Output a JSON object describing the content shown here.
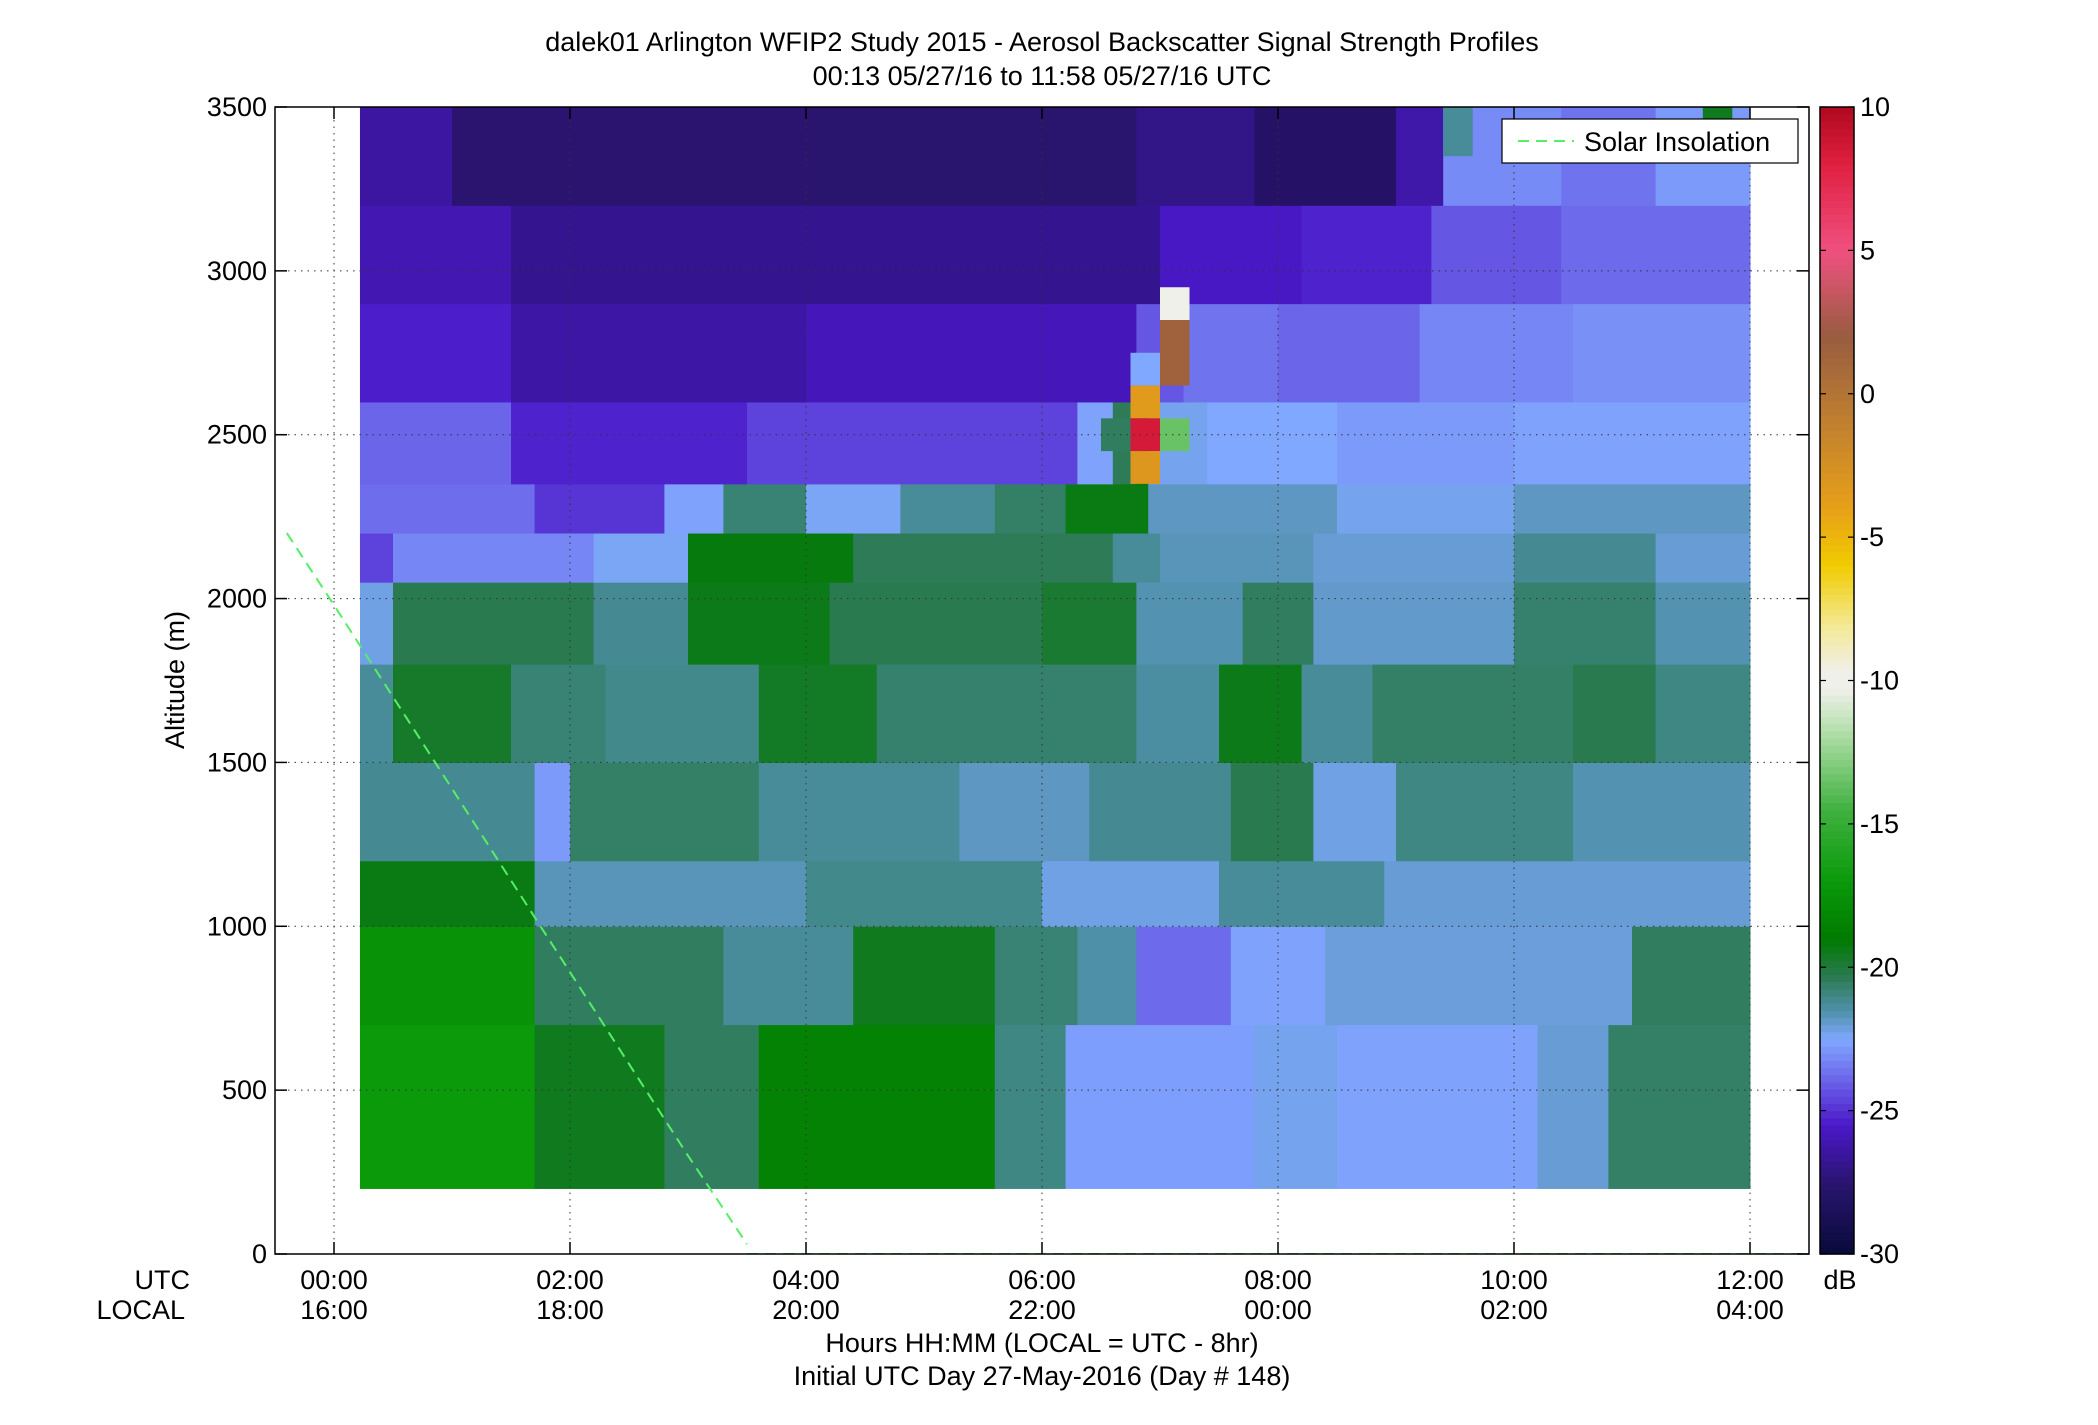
{
  "chart_data": {
    "type": "heatmap",
    "title": "dalek01 Arlington WFIP2 Study 2015 - Aerosol Backscatter Signal Strength Profiles",
    "subtitle": "00:13 05/27/16 to 11:58 05/27/16  UTC",
    "ylabel": "Altitude (m)",
    "xlabel": "Hours HH:MM  (LOCAL = UTC - 8hr)",
    "xlabel2": "Initial UTC Day 27-May-2016 (Day # 148)",
    "row_label_utc": "UTC",
    "row_label_local": "LOCAL",
    "xlim": [
      -0.5,
      12.5
    ],
    "ylim": [
      0,
      3500
    ],
    "grid": true,
    "legend": {
      "position": "top-right",
      "entries": [
        {
          "label": "Solar Insolation",
          "style": "dashed",
          "color": "#55ee66"
        }
      ]
    },
    "x_ticks": [
      {
        "value": 0,
        "utc": "00:00",
        "local": "16:00"
      },
      {
        "value": 2,
        "utc": "02:00",
        "local": "18:00"
      },
      {
        "value": 4,
        "utc": "04:00",
        "local": "20:00"
      },
      {
        "value": 6,
        "utc": "06:00",
        "local": "22:00"
      },
      {
        "value": 8,
        "utc": "08:00",
        "local": "00:00"
      },
      {
        "value": 10,
        "utc": "10:00",
        "local": "02:00"
      },
      {
        "value": 12,
        "utc": "12:00",
        "local": "04:00"
      }
    ],
    "y_ticks": [
      {
        "value": 0,
        "label": "0"
      },
      {
        "value": 500,
        "label": "500"
      },
      {
        "value": 1000,
        "label": "1000"
      },
      {
        "value": 1500,
        "label": "1500"
      },
      {
        "value": 2000,
        "label": "2000"
      },
      {
        "value": 2500,
        "label": "2500"
      },
      {
        "value": 3000,
        "label": "3000"
      },
      {
        "value": 3500,
        "label": "3500"
      }
    ],
    "colorbar": {
      "label": "dB",
      "range": [
        -30,
        10
      ],
      "ticks": [
        {
          "value": 10,
          "label": "10"
        },
        {
          "value": 5,
          "label": "5"
        },
        {
          "value": 0,
          "label": "0"
        },
        {
          "value": -5,
          "label": "-5"
        },
        {
          "value": -10,
          "label": "-10"
        },
        {
          "value": -15,
          "label": "-15"
        },
        {
          "value": -20,
          "label": "-20"
        },
        {
          "value": -25,
          "label": "-25"
        },
        {
          "value": -30,
          "label": "-30"
        }
      ],
      "stops": [
        {
          "value": -30,
          "color": "#080a3a"
        },
        {
          "value": -27.5,
          "color": "#2a1470"
        },
        {
          "value": -25.5,
          "color": "#4a18c8"
        },
        {
          "value": -24,
          "color": "#6a60e8"
        },
        {
          "value": -22.5,
          "color": "#80a8ff"
        },
        {
          "value": -21.5,
          "color": "#4e90a8"
        },
        {
          "value": -20.3,
          "color": "#2a7a50"
        },
        {
          "value": -19,
          "color": "#007a00"
        },
        {
          "value": -17,
          "color": "#0a9a0a"
        },
        {
          "value": -14.5,
          "color": "#40b040"
        },
        {
          "value": -12,
          "color": "#a8dca0"
        },
        {
          "value": -10.3,
          "color": "#f0f0ea"
        },
        {
          "value": -9.7,
          "color": "#f0f0ea"
        },
        {
          "value": -8,
          "color": "#f4e890"
        },
        {
          "value": -6,
          "color": "#f0cc00"
        },
        {
          "value": -4,
          "color": "#e8a018"
        },
        {
          "value": -1,
          "color": "#c08030"
        },
        {
          "value": 2,
          "color": "#985c40"
        },
        {
          "value": 5,
          "color": "#f05080"
        },
        {
          "value": 8,
          "color": "#e02040"
        },
        {
          "value": 10,
          "color": "#b00820"
        }
      ]
    },
    "series": [
      {
        "x": [
          3.5,
          12.5
        ],
        "y": [
          0,
          0
        ]
      },
      {
        "x": [
          -0.4,
          0.0,
          1.0,
          2.0,
          3.0,
          3.5
        ],
        "y": [
          2200,
          1980,
          1420,
          860,
          300,
          30
        ]
      }
    ],
    "heatmap": {
      "x_start": 0.22,
      "x_end": 12.0,
      "y_start": 200,
      "y_end": 3500,
      "bands": [
        {
          "y": [
            200,
            700
          ],
          "segments": [
            [
              0.22,
              1.7,
              -17
            ],
            [
              1.7,
              2.8,
              -19.5
            ],
            [
              2.8,
              3.6,
              -20.5
            ],
            [
              3.6,
              5.6,
              -18.5
            ],
            [
              5.6,
              6.2,
              -21
            ],
            [
              6.2,
              7.8,
              -22.7
            ],
            [
              7.8,
              8.5,
              -22.3
            ],
            [
              8.5,
              10.2,
              -22.6
            ],
            [
              10.2,
              10.8,
              -22
            ],
            [
              10.8,
              12.0,
              -20.6
            ]
          ]
        },
        {
          "y": [
            700,
            1000
          ],
          "segments": [
            [
              0.22,
              1.7,
              -17.5
            ],
            [
              1.7,
              3.3,
              -20.5
            ],
            [
              3.3,
              4.4,
              -21.3
            ],
            [
              4.4,
              5.6,
              -19.5
            ],
            [
              5.6,
              6.3,
              -20.8
            ],
            [
              6.3,
              6.8,
              -21.5
            ],
            [
              6.8,
              7.6,
              -23.8
            ],
            [
              7.6,
              8.4,
              -22.6
            ],
            [
              8.4,
              11.0,
              -22.1
            ],
            [
              11.0,
              12.0,
              -20.5
            ]
          ]
        },
        {
          "y": [
            1000,
            1200
          ],
          "segments": [
            [
              0.22,
              1.7,
              -19.3
            ],
            [
              1.7,
              4.0,
              -21.7
            ],
            [
              4.0,
              6.0,
              -21.1
            ],
            [
              6.0,
              7.5,
              -22.2
            ],
            [
              7.5,
              8.9,
              -21.3
            ],
            [
              8.9,
              12.0,
              -22
            ]
          ]
        },
        {
          "y": [
            1200,
            1500
          ],
          "segments": [
            [
              0.22,
              1.7,
              -21.2
            ],
            [
              1.7,
              2.0,
              -22.8
            ],
            [
              2.0,
              3.6,
              -20.6
            ],
            [
              3.6,
              5.3,
              -21.3
            ],
            [
              5.3,
              6.4,
              -21.8
            ],
            [
              6.4,
              7.6,
              -21.2
            ],
            [
              7.6,
              8.3,
              -20.3
            ],
            [
              8.3,
              9.0,
              -22.2
            ],
            [
              9.0,
              10.5,
              -21
            ],
            [
              10.5,
              12.0,
              -21.6
            ]
          ]
        },
        {
          "y": [
            1500,
            1800
          ],
          "segments": [
            [
              0.22,
              0.5,
              -21.3
            ],
            [
              0.5,
              1.5,
              -19.7
            ],
            [
              1.5,
              2.3,
              -20.8
            ],
            [
              2.3,
              3.6,
              -21.1
            ],
            [
              3.6,
              4.6,
              -19.6
            ],
            [
              4.6,
              6.8,
              -20.7
            ],
            [
              6.8,
              7.5,
              -21.4
            ],
            [
              7.5,
              8.2,
              -19.4
            ],
            [
              8.2,
              8.8,
              -21.3
            ],
            [
              8.8,
              9.6,
              -20.6
            ],
            [
              9.6,
              10.5,
              -20.6
            ],
            [
              10.5,
              11.2,
              -20.3
            ],
            [
              11.2,
              12.0,
              -21
            ]
          ]
        },
        {
          "y": [
            1800,
            2050
          ],
          "segments": [
            [
              0.22,
              0.5,
              -22.2
            ],
            [
              0.5,
              2.2,
              -20.3
            ],
            [
              2.2,
              3.0,
              -21.2
            ],
            [
              3.0,
              4.2,
              -19.4
            ],
            [
              4.2,
              6.0,
              -20.3
            ],
            [
              6.0,
              6.8,
              -19.8
            ],
            [
              6.8,
              7.7,
              -21.6
            ],
            [
              7.7,
              8.3,
              -20.5
            ],
            [
              8.3,
              10.0,
              -21.9
            ],
            [
              10.0,
              11.2,
              -20.7
            ],
            [
              11.2,
              12.0,
              -21.6
            ]
          ]
        },
        {
          "y": [
            2050,
            2200
          ],
          "segments": [
            [
              0.22,
              0.5,
              -24.6
            ],
            [
              0.5,
              2.2,
              -23.2
            ],
            [
              2.2,
              3.0,
              -22.4
            ],
            [
              3.0,
              4.4,
              -19.2
            ],
            [
              4.4,
              6.6,
              -20.4
            ],
            [
              6.6,
              7.0,
              -21.3
            ],
            [
              7.0,
              8.3,
              -21.7
            ],
            [
              8.3,
              10.0,
              -22
            ],
            [
              10.0,
              11.2,
              -21.2
            ],
            [
              11.2,
              12.0,
              -22
            ]
          ]
        },
        {
          "y": [
            2200,
            2350
          ],
          "segments": [
            [
              0.22,
              1.7,
              -23.7
            ],
            [
              1.7,
              2.8,
              -24.9
            ],
            [
              2.8,
              3.3,
              -22.6
            ],
            [
              3.3,
              4.0,
              -20.8
            ],
            [
              4.0,
              4.8,
              -22.4
            ],
            [
              4.8,
              5.6,
              -21.3
            ],
            [
              5.6,
              6.2,
              -20.6
            ],
            [
              6.2,
              6.9,
              -19.3
            ],
            [
              6.9,
              8.5,
              -21.8
            ],
            [
              8.5,
              10.0,
              -22.3
            ],
            [
              10.0,
              12.0,
              -21.8
            ]
          ]
        },
        {
          "y": [
            2350,
            2600
          ],
          "segments": [
            [
              0.22,
              1.5,
              -23.9
            ],
            [
              1.5,
              3.5,
              -25.3
            ],
            [
              3.5,
              6.3,
              -24.6
            ],
            [
              6.3,
              6.6,
              -22.6
            ],
            [
              6.6,
              6.8,
              -20.4
            ],
            [
              6.8,
              6.9,
              -19.1
            ],
            [
              6.9,
              7.4,
              -22.3
            ],
            [
              7.4,
              8.5,
              -22.5
            ],
            [
              8.5,
              10.0,
              -22.8
            ],
            [
              10.0,
              12.0,
              -22.6
            ]
          ]
        },
        {
          "y": [
            2600,
            2900
          ],
          "segments": [
            [
              0.22,
              1.5,
              -25.4
            ],
            [
              1.5,
              4.0,
              -26.3
            ],
            [
              4.0,
              6.8,
              -25.8
            ],
            [
              6.8,
              7.2,
              -24.2
            ],
            [
              7.2,
              8.0,
              -23.6
            ],
            [
              8.0,
              9.2,
              -23.9
            ],
            [
              9.2,
              10.5,
              -23.2
            ],
            [
              10.5,
              12.0,
              -23
            ]
          ]
        },
        {
          "y": [
            2900,
            3200
          ],
          "segments": [
            [
              0.22,
              1.5,
              -26
            ],
            [
              1.5,
              4.0,
              -26.8
            ],
            [
              4.0,
              7.0,
              -26.8
            ],
            [
              7.0,
              8.2,
              -25.6
            ],
            [
              8.2,
              9.3,
              -25.3
            ],
            [
              9.3,
              10.4,
              -24.2
            ],
            [
              10.4,
              12.0,
              -23.8
            ]
          ]
        },
        {
          "y": [
            3200,
            3500
          ],
          "segments": [
            [
              0.22,
              1.0,
              -26.4
            ],
            [
              1.0,
              4.0,
              -27.5
            ],
            [
              4.0,
              6.8,
              -27.6
            ],
            [
              6.8,
              7.8,
              -27
            ],
            [
              7.8,
              9.0,
              -27.9
            ],
            [
              9.0,
              9.4,
              -26.2
            ],
            [
              9.4,
              10.4,
              -23.1
            ],
            [
              10.4,
              11.2,
              -23.6
            ],
            [
              11.2,
              12.0,
              -22.8
            ]
          ]
        }
      ],
      "cells": [
        {
          "x": [
            7.0,
            7.25
          ],
          "y": [
            2850,
            2950
          ],
          "value": -10
        },
        {
          "x": [
            7.0,
            7.25
          ],
          "y": [
            2650,
            2850
          ],
          "value": 1.5
        },
        {
          "x": [
            6.75,
            7.0
          ],
          "y": [
            2650,
            2750
          ],
          "value": -22.5
        },
        {
          "x": [
            6.75,
            7.0
          ],
          "y": [
            2550,
            2650
          ],
          "value": -3.5
        },
        {
          "x": [
            6.75,
            7.0
          ],
          "y": [
            2450,
            2550
          ],
          "value": 8.5
        },
        {
          "x": [
            6.75,
            7.0
          ],
          "y": [
            2350,
            2450
          ],
          "value": -3.2
        },
        {
          "x": [
            7.0,
            7.25
          ],
          "y": [
            2450,
            2550
          ],
          "value": -13.5
        },
        {
          "x": [
            6.5,
            6.75
          ],
          "y": [
            2450,
            2550
          ],
          "value": -20.5
        },
        {
          "x": [
            9.4,
            9.65
          ],
          "y": [
            3350,
            3500
          ],
          "value": -21.3
        },
        {
          "x": [
            11.6,
            11.85
          ],
          "y": [
            3400,
            3500
          ],
          "value": -19.5
        }
      ]
    }
  }
}
